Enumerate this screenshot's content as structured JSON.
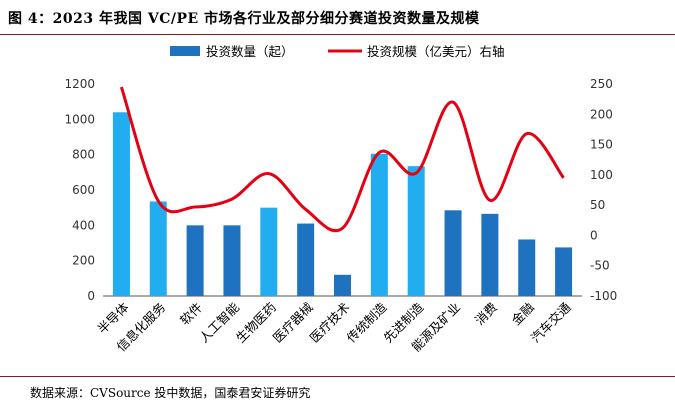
{
  "page": {
    "title": "图 4：2023 年我国 VC/PE 市场各行业及部分细分赛道投资数量及规模",
    "source": "数据来源：CVSource 投中数据，国泰君安证券研究"
  },
  "chart_data": {
    "type": "bar",
    "categories": [
      "半导体",
      "信息化服务",
      "软件",
      "人工智能",
      "生物医药",
      "医疗器械",
      "医疗技术",
      "传统制造",
      "先进制造",
      "能源及矿业",
      "消费",
      "金融",
      "汽车交通"
    ],
    "series": [
      {
        "name": "投资数量（起）",
        "type": "bar",
        "axis": "left",
        "values": [
          1040,
          535,
          400,
          400,
          500,
          410,
          120,
          805,
          735,
          485,
          465,
          320,
          275
        ],
        "highlight": [
          true,
          true,
          false,
          false,
          true,
          false,
          false,
          true,
          true,
          false,
          false,
          false,
          false
        ]
      },
      {
        "name": "投资规模（亿美元）右轴",
        "type": "line",
        "axis": "right",
        "values": [
          245,
          57,
          47,
          60,
          102,
          43,
          12,
          137,
          103,
          220,
          58,
          168,
          95
        ]
      }
    ],
    "y_left": {
      "min": 0,
      "max": 1200,
      "ticks": [
        "0",
        "200",
        "400",
        "600",
        "800",
        "1000",
        "1200"
      ]
    },
    "y_right": {
      "min": -100,
      "max": 250,
      "ticks": [
        "-100",
        "-50",
        "0",
        "50",
        "100",
        "150",
        "200",
        "250"
      ]
    },
    "legend_position": "top-center",
    "grid": false,
    "colors": {
      "bar_dark": "#1f72bf",
      "bar_light": "#22adf0",
      "legend_bar": "#1f72bf",
      "line": "#e50012",
      "rule": "#8a1c1c"
    }
  }
}
